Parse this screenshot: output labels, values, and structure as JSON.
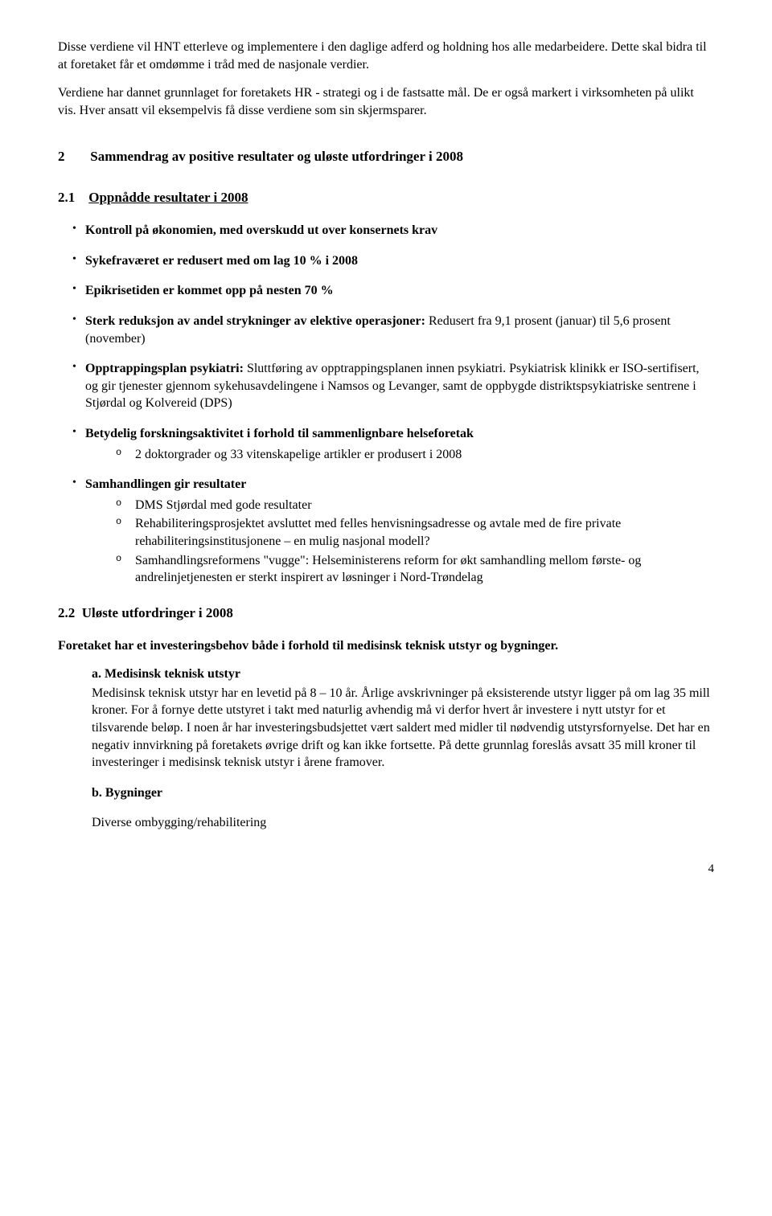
{
  "intro": {
    "p1": "Disse verdiene vil HNT etterleve og implementere i den daglige adferd og holdning hos alle medarbeidere. Dette skal bidra til at foretaket får et omdømme i tråd  med de nasjonale verdier.",
    "p2": "Verdiene har dannet grunnlaget for foretakets HR - strategi  og i de fastsatte mål.  De er også markert i virksomheten på ulikt vis.  Hver ansatt vil eksempelvis få disse verdiene som sin skjermsparer."
  },
  "sec2": {
    "num": "2",
    "title": "Sammendrag av positive resultater og uløste utfordringer i 2008"
  },
  "sec21": {
    "num": "2.1",
    "title": "Oppnådde resultater i 2008",
    "b1": "Kontroll på økonomien, med overskudd ut over konsernets krav",
    "b2": "Sykefraværet er redusert med om lag 10 % i 2008",
    "b3": "Epikrisetiden er kommet opp på nesten 70 %",
    "b4_bold": "Sterk reduksjon av andel strykninger av elektive operasjoner:",
    "b4_rest": " Redusert fra 9,1 prosent (januar) til 5,6 prosent (november)",
    "b5_bold": "Opptrappingsplan psykiatri:",
    "b5_rest": " Sluttføring av opptrappingsplanen innen psykiatri. Psykiatrisk klinikk er ISO-sertifisert, og gir tjenester gjennom sykehusavdelingene i Namsos og Levanger, samt de oppbygde distriktspsykiatriske sentrene i Stjørdal og Kolvereid (DPS)",
    "b6_bold": "Betydelig forskningsaktivitet i forhold til sammenlignbare helseforetak",
    "b6_s1": "2 doktorgrader og 33 vitenskapelige artikler er produsert i 2008",
    "b7_bold": "Samhandlingen gir resultater",
    "b7_s1": "DMS Stjørdal med gode resultater",
    "b7_s2": "Rehabiliteringsprosjektet avsluttet med felles henvisningsadresse og avtale med de fire private rehabiliteringsinstitusjonene – en mulig nasjonal modell?",
    "b7_s3": "Samhandlingsreformens \"vugge\": Helseministerens reform for økt samhandling mellom første- og andrelinjetjenesten er sterkt inspirert av løsninger i Nord-Trøndelag"
  },
  "sec22": {
    "num": "2.2",
    "title": "Uløste utfordringer i 2008",
    "lead": "Foretaket har et investeringsbehov både i forhold til medisinsk teknisk utstyr og bygninger.",
    "a_label": "a.   Medisinsk teknisk utstyr",
    "a_body": "Medisinsk teknisk utstyr har en levetid på 8 – 10 år.  Årlige avskrivninger på eksisterende utstyr ligger på om lag 35 mill kroner.  For å fornye dette utstyret i takt med naturlig avhendig må vi derfor hvert år investere i nytt utstyr for et tilsvarende beløp.  I noen år har investeringsbudsjettet vært saldert med midler til nødvendig utstyrsfornyelse.  Det har en negativ innvirkning på foretakets øvrige drift og kan ikke fortsette.  På dette grunnlag foreslås avsatt 35 mill kroner til investeringer i medisinsk teknisk utstyr i årene framover.",
    "b_label": "b. Bygninger",
    "b_body": "Diverse ombygging/rehabilitering"
  },
  "page_num": "4"
}
